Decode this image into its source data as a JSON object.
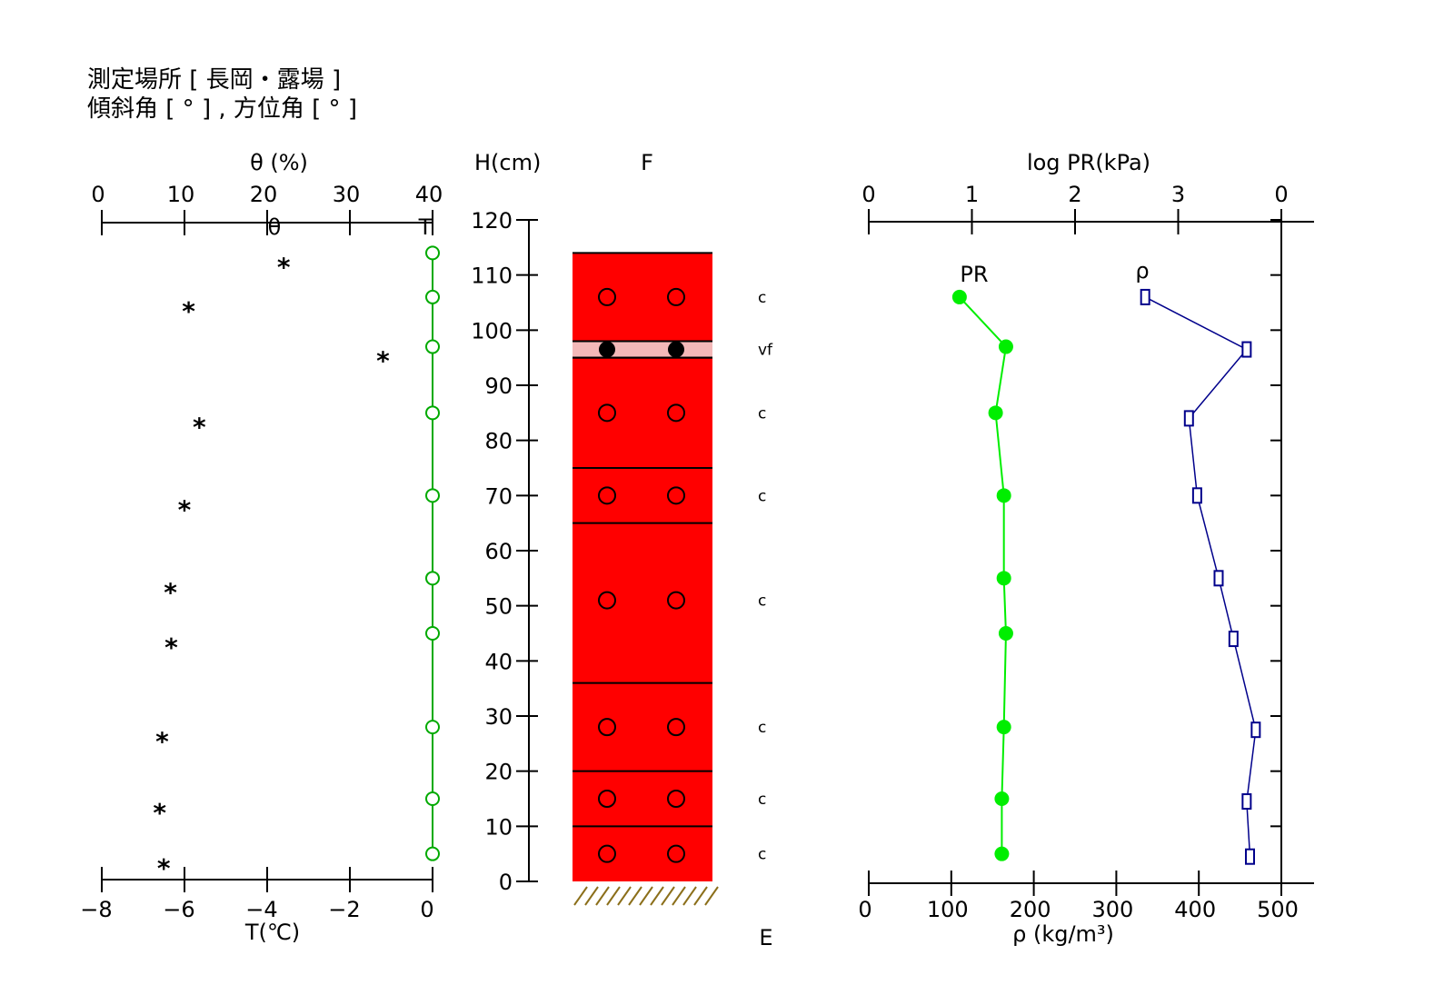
{
  "header": {
    "line1": "測定場所 [ 長岡・露場 ]",
    "line2": "傾斜角 [ ° ] , 方位角 [ ° ]"
  },
  "colors": {
    "layer_fill": "#ff0000",
    "ice_layer_fill": "#f4b8b8",
    "temperature_line": "#00aa00",
    "pr_line": "#00ee00",
    "density_line": "#00008b",
    "ground_hatch": "#8b6f1a"
  },
  "chart_data": [
    {
      "type": "scatter",
      "name": "moisture-temperature-profile",
      "top_axis": {
        "label": "θ (%)",
        "ticks": [
          "0",
          "10",
          "20",
          "30",
          "40"
        ],
        "range": [
          0,
          40
        ],
        "marker_labels": [
          "θ",
          "T"
        ]
      },
      "bottom_axis": {
        "label": "T(℃)",
        "ticks": [
          "−8",
          "−6",
          "−4",
          "−2",
          "0"
        ],
        "range": [
          -8,
          0
        ]
      },
      "moisture": [
        {
          "h": 112,
          "theta": 22
        },
        {
          "h": 104,
          "theta": 10.5
        },
        {
          "h": 95,
          "theta": 34
        },
        {
          "h": 83,
          "theta": 11.8
        },
        {
          "h": 68,
          "theta": 10
        },
        {
          "h": 53,
          "theta": 8.3
        },
        {
          "h": 43,
          "theta": 8.4
        },
        {
          "h": 26,
          "theta": 7.3
        },
        {
          "h": 13,
          "theta": 7
        },
        {
          "h": 3,
          "theta": 7.5
        }
      ],
      "temperature": [
        {
          "h": 114,
          "T": 0
        },
        {
          "h": 106,
          "T": 0
        },
        {
          "h": 97,
          "T": 0
        },
        {
          "h": 85,
          "T": 0
        },
        {
          "h": 70,
          "T": 0
        },
        {
          "h": 55,
          "T": 0
        },
        {
          "h": 45,
          "T": 0
        },
        {
          "h": 28,
          "T": 0
        },
        {
          "h": 15,
          "T": 0
        },
        {
          "h": 5,
          "T": 0
        }
      ]
    },
    {
      "type": "table",
      "name": "snow-layer-profile",
      "height_axis": {
        "label": "H(cm)",
        "ticks": [
          "0",
          "10",
          "20",
          "30",
          "40",
          "50",
          "60",
          "70",
          "80",
          "90",
          "100",
          "110",
          "120"
        ],
        "range": [
          0,
          120
        ]
      },
      "column_label": "F",
      "bottom_label": "E",
      "snow_top": 114,
      "layers": [
        {
          "bottom": 98,
          "top": 114,
          "grain": "c",
          "symbol": "o",
          "symbol_h": 106
        },
        {
          "bottom": 95,
          "top": 98,
          "grain": "vf",
          "symbol": "●",
          "symbol_h": 96.5
        },
        {
          "bottom": 75,
          "top": 95,
          "grain": "c",
          "symbol": "o",
          "symbol_h": 85
        },
        {
          "bottom": 65,
          "top": 75,
          "grain": "c",
          "symbol": "o",
          "symbol_h": 70
        },
        {
          "bottom": 36,
          "top": 65,
          "grain": "c",
          "symbol": "o",
          "symbol_h": 51
        },
        {
          "bottom": 20,
          "top": 36,
          "grain": "c",
          "symbol": "o",
          "symbol_h": 28
        },
        {
          "bottom": 10,
          "top": 20,
          "grain": "c",
          "symbol": "o",
          "symbol_h": 15
        },
        {
          "bottom": 0,
          "top": 10,
          "grain": "c",
          "symbol": "o",
          "symbol_h": 5
        }
      ]
    },
    {
      "type": "line",
      "name": "resistance-density-profile",
      "top_axis": {
        "label": "log PR(kPa)",
        "ticks": [
          "0",
          "1",
          "2",
          "3",
          "0"
        ],
        "range": [
          0,
          4
        ]
      },
      "bottom_axis": {
        "label": "ρ (kg/m³)",
        "ticks": [
          "0",
          "100",
          "200",
          "300",
          "400",
          "500"
        ],
        "range": [
          0,
          500
        ]
      },
      "series": [
        {
          "name": "PR",
          "points": [
            {
              "h": 106,
              "value": 0.88
            },
            {
              "h": 97,
              "value": 1.33
            },
            {
              "h": 85,
              "value": 1.23
            },
            {
              "h": 70,
              "value": 1.31
            },
            {
              "h": 55,
              "value": 1.31
            },
            {
              "h": 45,
              "value": 1.33
            },
            {
              "h": 28,
              "value": 1.31
            },
            {
              "h": 15,
              "value": 1.29
            },
            {
              "h": 5,
              "value": 1.29
            }
          ]
        },
        {
          "name": "ρ",
          "points": [
            {
              "h": 106,
              "value": 335
            },
            {
              "h": 96.5,
              "value": 458
            },
            {
              "h": 84,
              "value": 388
            },
            {
              "h": 70,
              "value": 398
            },
            {
              "h": 55,
              "value": 424
            },
            {
              "h": 44,
              "value": 442
            },
            {
              "h": 27.5,
              "value": 469
            },
            {
              "h": 14.5,
              "value": 458
            },
            {
              "h": 4.5,
              "value": 462
            }
          ]
        }
      ]
    }
  ]
}
